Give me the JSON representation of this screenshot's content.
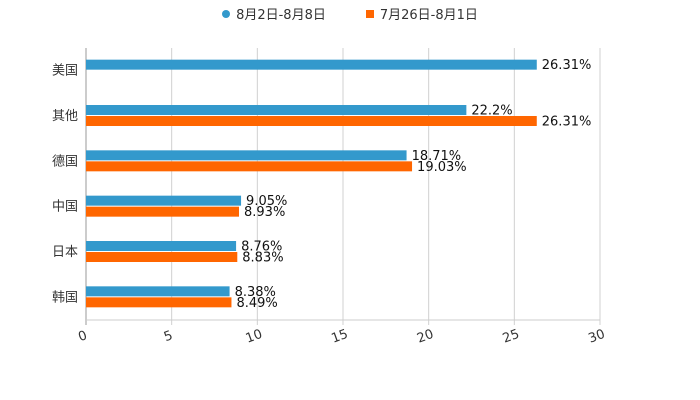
{
  "chart_data": {
    "type": "bar",
    "orientation": "horizontal",
    "title": "",
    "xlabel": "",
    "ylabel": "",
    "xlim": [
      0,
      30
    ],
    "xticks": [
      0,
      5,
      10,
      15,
      20,
      25,
      30
    ],
    "xtick_labels": [
      "0",
      "5",
      "10",
      "15",
      "20",
      "25",
      "30"
    ],
    "grid": true,
    "legend_position": "top-center",
    "categories": [
      "美国",
      "其他",
      "德国",
      "中国",
      "日本",
      "韩国"
    ],
    "series": [
      {
        "name": "8月2日-8月8日",
        "color": "#3399cc",
        "marker": "circle",
        "values": [
          26.31,
          22.2,
          18.71,
          9.05,
          8.76,
          8.38
        ],
        "labels": [
          "26.31%",
          "22.2%",
          "18.71%",
          "9.05%",
          "8.76%",
          "8.38%"
        ]
      },
      {
        "name": "7月26日-8月1日",
        "color": "#ff6600",
        "marker": "square",
        "values": [
          null,
          26.31,
          19.03,
          8.93,
          8.83,
          8.49
        ],
        "labels": [
          "",
          "26.31%",
          "19.03%",
          "8.93%",
          "8.83%",
          "8.49%"
        ]
      }
    ]
  }
}
